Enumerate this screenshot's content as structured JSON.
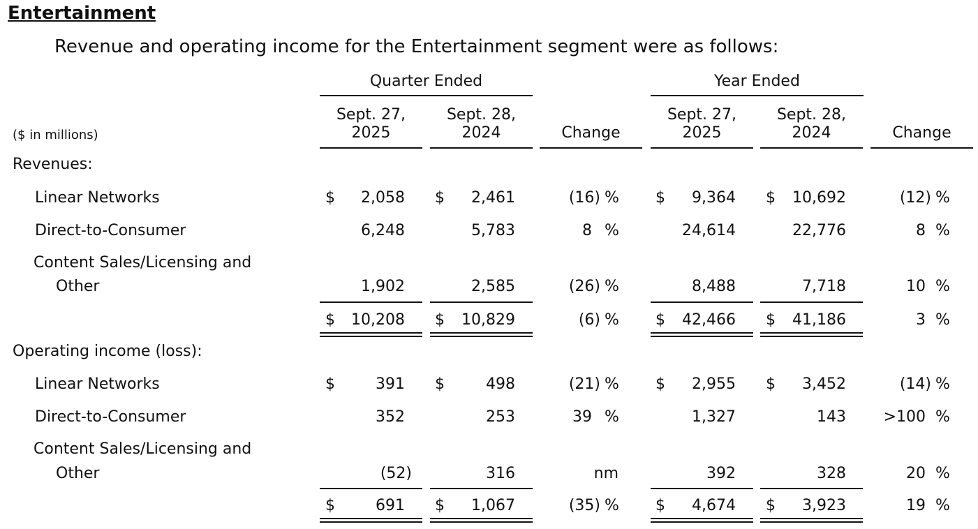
{
  "doc": {
    "section_title": "Entertainment",
    "intro": "Revenue and operating income for the Entertainment segment were as follows:",
    "units": "($ in millions)"
  },
  "headers": {
    "quarter_group": "Quarter Ended",
    "year_group": "Year Ended",
    "q_cur": [
      "Sept. 27,",
      "2025"
    ],
    "q_prev": [
      "Sept. 28,",
      "2024"
    ],
    "y_cur": [
      "Sept. 27,",
      "2025"
    ],
    "y_prev": [
      "Sept. 28,",
      "2024"
    ],
    "change": "Change"
  },
  "revenues": {
    "label": "Revenues:",
    "rows": [
      {
        "label": "Linear Networks",
        "q_cur": "2,058",
        "q_prev": "2,461",
        "q_chg": "(16)",
        "y_cur": "9,364",
        "y_prev": "10,692",
        "y_chg": "(12)"
      },
      {
        "label": "Direct-to-Consumer",
        "q_cur": "6,248",
        "q_prev": "5,783",
        "q_chg": "8",
        "y_cur": "24,614",
        "y_prev": "22,776",
        "y_chg": "8"
      },
      {
        "label": [
          "Content Sales/Licensing and",
          "Other"
        ],
        "q_cur": "1,902",
        "q_prev": "2,585",
        "q_chg": "(26)",
        "y_cur": "8,488",
        "y_prev": "7,718",
        "y_chg": "10"
      }
    ],
    "total": {
      "q_cur": "10,208",
      "q_prev": "10,829",
      "q_chg": "(6)",
      "y_cur": "42,466",
      "y_prev": "41,186",
      "y_chg": "3"
    }
  },
  "operating_income": {
    "label": "Operating income (loss):",
    "rows": [
      {
        "label": "Linear Networks",
        "q_cur": "391",
        "q_prev": "498",
        "q_chg": "(21)",
        "y_cur": "2,955",
        "y_prev": "3,452",
        "y_chg": "(14)"
      },
      {
        "label": "Direct-to-Consumer",
        "q_cur": "352",
        "q_prev": "253",
        "q_chg": "39",
        "y_cur": "1,327",
        "y_prev": "143",
        "y_chg": ">100"
      },
      {
        "label": [
          "Content Sales/Licensing and",
          "Other"
        ],
        "q_cur": "(52)",
        "q_prev": "316",
        "q_chg": "nm",
        "y_cur": "392",
        "y_prev": "328",
        "y_chg": "20"
      }
    ],
    "total": {
      "q_cur": "691",
      "q_prev": "1,067",
      "q_chg": "(35)",
      "y_cur": "4,674",
      "y_prev": "3,923",
      "y_chg": "19"
    }
  },
  "symbols": {
    "dollar": "$",
    "percent": "%"
  }
}
